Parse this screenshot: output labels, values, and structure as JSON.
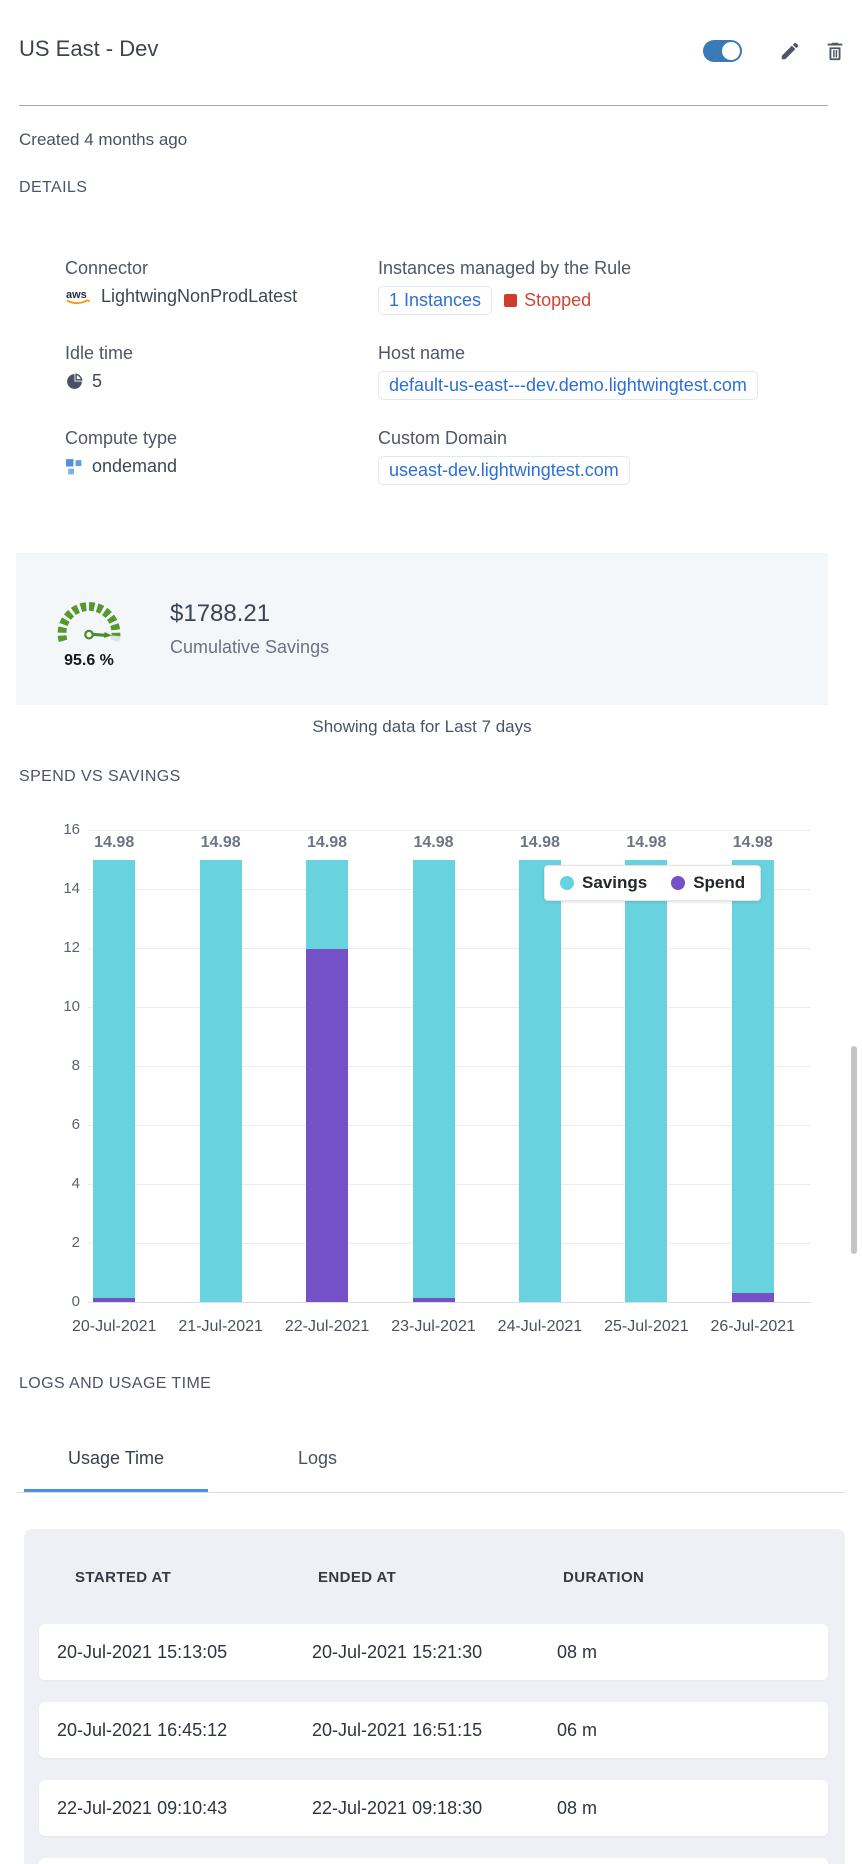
{
  "header": {
    "title": "US East - Dev",
    "toggle_on": true
  },
  "meta": {
    "created": "Created 4 months ago",
    "details_heading": "DETAILS"
  },
  "details": {
    "connector": {
      "label": "Connector",
      "icon": "aws-icon",
      "value": "LightwingNonProdLatest"
    },
    "instances": {
      "label": "Instances managed by the Rule",
      "link": "1 Instances",
      "status": "Stopped"
    },
    "idle_time": {
      "label": "Idle time",
      "icon": "idle-clock-icon",
      "value": "5"
    },
    "host_name": {
      "label": "Host name",
      "value": "default-us-east---dev.demo.lightwingtest.com"
    },
    "compute_type": {
      "label": "Compute type",
      "icon": "compute-squares-icon",
      "value": "ondemand"
    },
    "custom_domain": {
      "label": "Custom Domain",
      "value": "useast-dev.lightwingtest.com"
    }
  },
  "savings": {
    "percent": "95.6 %",
    "amount": "$1788.21",
    "caption": "Cumulative Savings"
  },
  "period_note": "Showing data for Last 7 days",
  "chart_heading": "SPEND VS SAVINGS",
  "chart_data": {
    "type": "bar",
    "stacked": true,
    "title": "SPEND VS SAVINGS",
    "categories": [
      "20-Jul-2021",
      "21-Jul-2021",
      "22-Jul-2021",
      "23-Jul-2021",
      "24-Jul-2021",
      "25-Jul-2021",
      "26-Jul-2021"
    ],
    "series": [
      {
        "name": "Savings",
        "color": "#68d3de",
        "values": [
          14.86,
          14.98,
          3.03,
          14.86,
          14.98,
          14.98,
          14.68
        ]
      },
      {
        "name": "Spend",
        "color": "#7451c6",
        "values": [
          0.12,
          0,
          11.95,
          0.12,
          0,
          0,
          0.3
        ]
      }
    ],
    "bar_total_labels": [
      "14.98",
      "14.98",
      "14.98",
      "14.98",
      "14.98",
      "14.98",
      "14.98"
    ],
    "ylim": [
      0,
      16
    ],
    "yticks": [
      0,
      2,
      4,
      6,
      8,
      10,
      12,
      14,
      16
    ],
    "grid": true,
    "legend_position": "top-right-inside"
  },
  "logs": {
    "heading": "LOGS AND USAGE TIME",
    "tabs": [
      {
        "label": "Usage Time",
        "active": true
      },
      {
        "label": "Logs",
        "active": false
      }
    ],
    "table": {
      "columns": [
        "STARTED AT",
        "ENDED AT",
        "DURATION"
      ],
      "rows": [
        [
          "20-Jul-2021 15:13:05",
          "20-Jul-2021 15:21:30",
          "08 m"
        ],
        [
          "20-Jul-2021 16:45:12",
          "20-Jul-2021 16:51:15",
          "06 m"
        ],
        [
          "22-Jul-2021 09:10:43",
          "22-Jul-2021 09:18:30",
          "08 m"
        ]
      ]
    }
  },
  "colors": {
    "toggle_blue": "#3a7ab8",
    "savings_teal": "#68d3de",
    "spend_purple": "#7451c6",
    "stopped_red": "#cc3d2e",
    "link_blue": "#2e6fd3",
    "gauge_green": "#55992e",
    "tab_accent_blue": "#4b90da"
  }
}
